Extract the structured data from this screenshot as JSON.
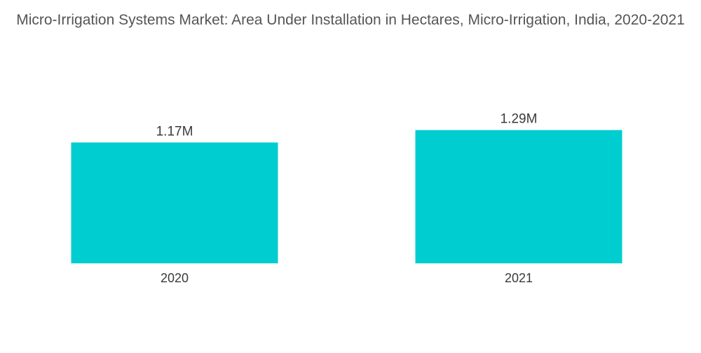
{
  "chart_data": {
    "type": "bar",
    "title": "Micro-Irrigation Systems Market: Area Under Installation in Hectares, Micro-Irrigation, India, 2020-2021",
    "categories": [
      "2020",
      "2021"
    ],
    "values": [
      1.17,
      1.29
    ],
    "data_labels": [
      "1.17M",
      "1.29M"
    ],
    "unit": "M",
    "ylim": [
      0,
      1.4
    ],
    "grid": false,
    "legend": "none",
    "bar_color": "#00CDD0"
  }
}
